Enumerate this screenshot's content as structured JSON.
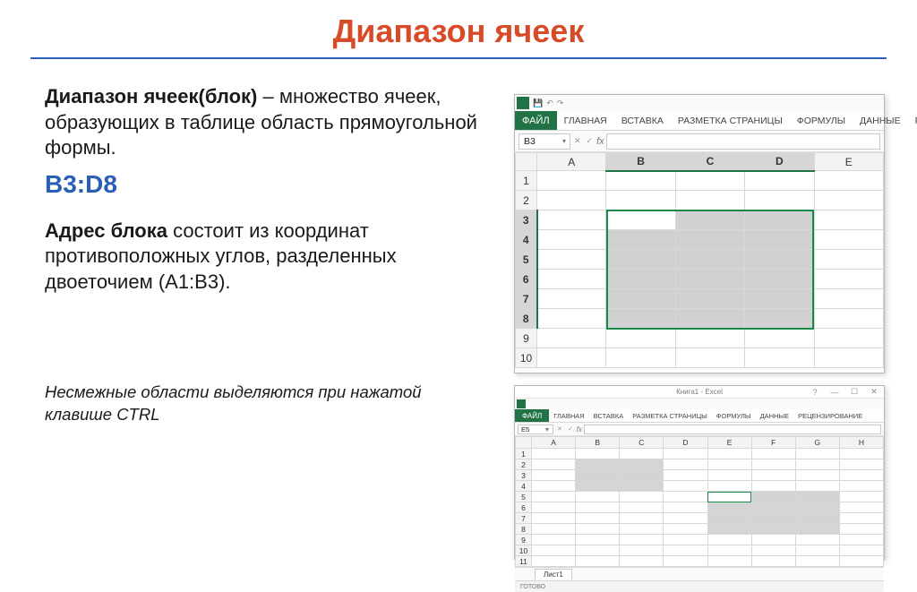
{
  "title": "Диапазон ячеек",
  "para1_bold": "Диапазон ячеек(блок)",
  "para1_rest": " – множество ячеек, образующих в таблице область прямоугольной формы.",
  "range_ref": "B3:D8",
  "para2_bold": "Адрес блока",
  "para2_rest": " состоит из координат противоположных углов, разделенных двоеточием (A1:B3).",
  "note": "Несмежные области выделяются при нажатой клавише CTRL",
  "excel1": {
    "tabs": {
      "file": "ФАЙЛ",
      "t1": "ГЛАВНАЯ",
      "t2": "ВСТАВКА",
      "t3": "РАЗМЕТКА СТРАНИЦЫ",
      "t4": "ФОРМУЛЫ",
      "t5": "ДАННЫЕ",
      "t6": "РЕЦЕН"
    },
    "namebox": "B3",
    "fx": "fx",
    "cols": [
      "A",
      "B",
      "C",
      "D",
      "E"
    ],
    "rows": [
      "1",
      "2",
      "3",
      "4",
      "5",
      "6",
      "7",
      "8",
      "9",
      "10"
    ],
    "sel_cols": [
      "B",
      "C",
      "D"
    ],
    "sel_rows": [
      "3",
      "4",
      "5",
      "6",
      "7",
      "8"
    ],
    "active": "B3"
  },
  "excel2": {
    "title": "Книга1 - Excel",
    "tabs": {
      "file": "ФАЙЛ",
      "t1": "ГЛАВНАЯ",
      "t2": "ВСТАВКА",
      "t3": "РАЗМЕТКА СТРАНИЦЫ",
      "t4": "ФОРМУЛЫ",
      "t5": "ДАННЫЕ",
      "t6": "РЕЦЕНЗИРОВАНИЕ"
    },
    "namebox": "E5",
    "fx": "fx",
    "cols": [
      "A",
      "B",
      "C",
      "D",
      "E",
      "F",
      "G",
      "H"
    ],
    "rows": [
      "1",
      "2",
      "3",
      "4",
      "5",
      "6",
      "7",
      "8",
      "9",
      "10",
      "11"
    ],
    "sheet": "Лист1",
    "status": "ГОТОВО"
  },
  "colors": {
    "title": "#d84b28",
    "accent": "#2a5fb8",
    "excel_green": "#217346",
    "sel_fill": "#d1d1d1",
    "grid_border": "#d8d8d8"
  }
}
